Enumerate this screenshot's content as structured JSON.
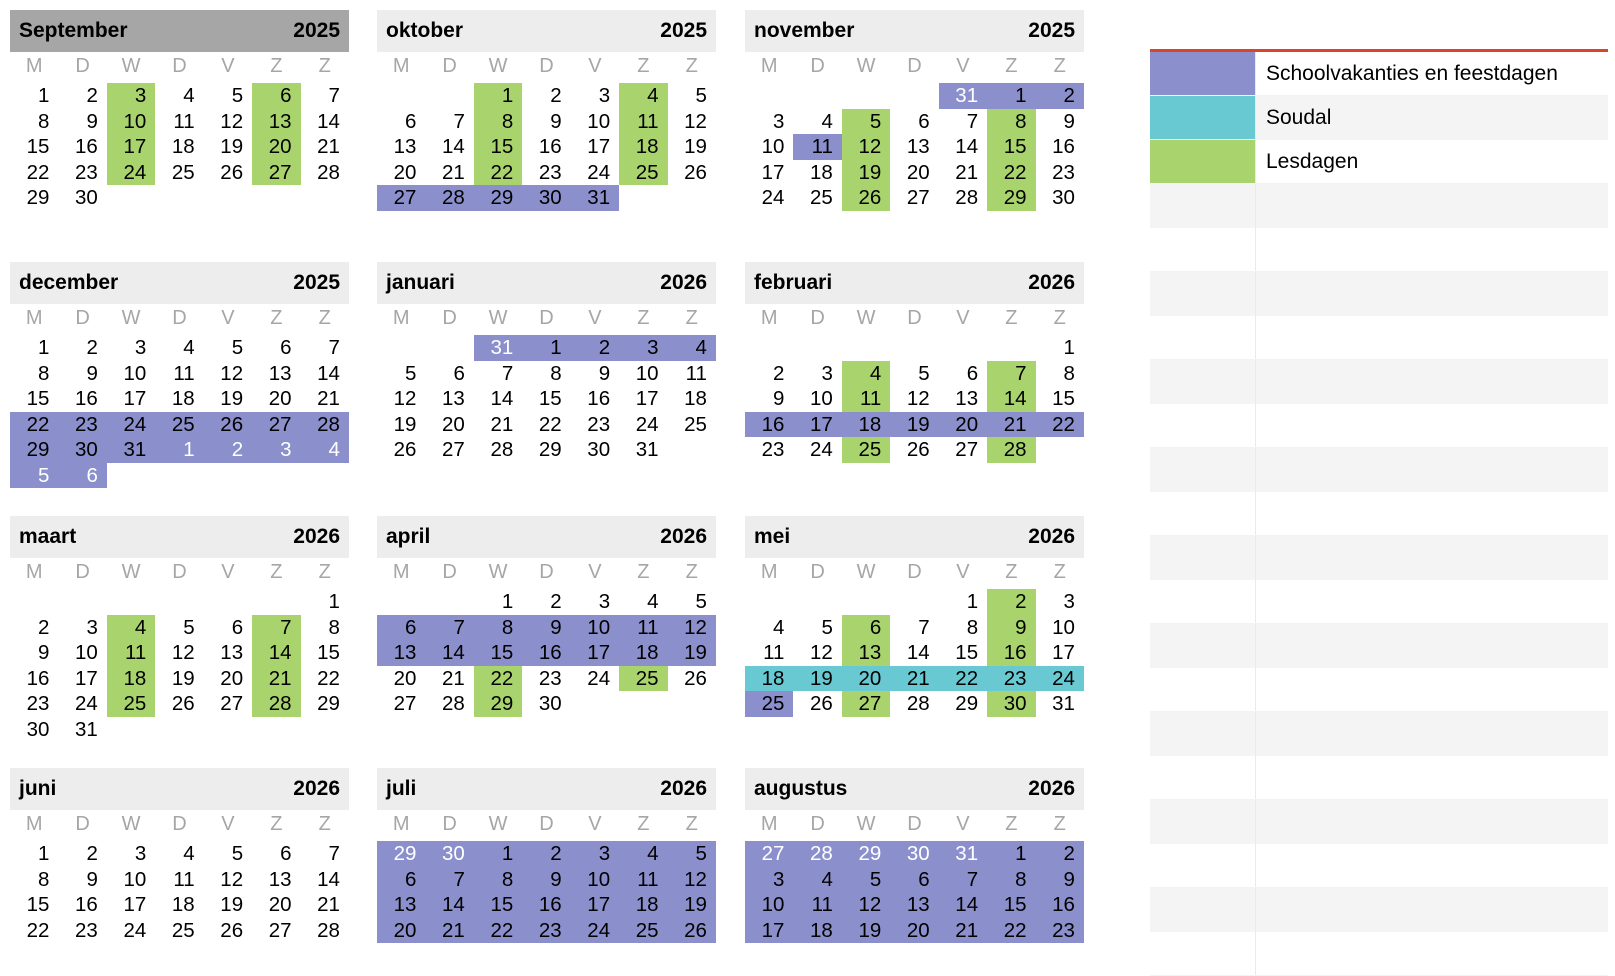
{
  "weekday_labels": [
    "M",
    "D",
    "W",
    "D",
    "V",
    "Z",
    "Z"
  ],
  "legend": {
    "items": [
      {
        "label": "Schoolvakanties en feestdagen",
        "color": "#8b90cc"
      },
      {
        "label": "Soudal",
        "color": "#69c9d3"
      },
      {
        "label": "Lesdagen",
        "color": "#a9d46d"
      }
    ],
    "empty_rows": 18
  },
  "colors": {
    "green": "#a9d46d",
    "purple": "#8b90cc",
    "teal": "#69c9d3",
    "header": "#ededed",
    "header_selected": "#a6a6a6"
  },
  "months": [
    {
      "name": "September",
      "year": "2025",
      "selected": true,
      "weeks": [
        [
          1,
          2,
          3,
          4,
          5,
          6,
          7
        ],
        [
          8,
          9,
          10,
          11,
          12,
          13,
          14
        ],
        [
          15,
          16,
          17,
          18,
          19,
          20,
          21
        ],
        [
          22,
          23,
          24,
          25,
          26,
          27,
          28
        ],
        [
          29,
          30,
          null,
          null,
          null,
          null,
          null
        ]
      ],
      "colors": [
        [
          "",
          "",
          "green",
          "",
          "",
          "green",
          ""
        ],
        [
          "",
          "",
          "green",
          "",
          "",
          "green",
          ""
        ],
        [
          "",
          "",
          "green",
          "",
          "",
          "green",
          ""
        ],
        [
          "",
          "",
          "green",
          "",
          "",
          "green",
          ""
        ],
        [
          "",
          "",
          "",
          "",
          "",
          "",
          ""
        ]
      ]
    },
    {
      "name": "oktober",
      "year": "2025",
      "weeks": [
        [
          null,
          null,
          1,
          2,
          3,
          4,
          5
        ],
        [
          6,
          7,
          8,
          9,
          10,
          11,
          12
        ],
        [
          13,
          14,
          15,
          16,
          17,
          18,
          19
        ],
        [
          20,
          21,
          22,
          23,
          24,
          25,
          26
        ],
        [
          27,
          28,
          29,
          30,
          31,
          null,
          null
        ]
      ],
      "colors": [
        [
          "",
          "",
          "green",
          "",
          "",
          "green",
          ""
        ],
        [
          "",
          "",
          "green",
          "",
          "",
          "green",
          ""
        ],
        [
          "",
          "",
          "green",
          "",
          "",
          "green",
          ""
        ],
        [
          "",
          "",
          "green",
          "",
          "",
          "green",
          ""
        ],
        [
          "purple",
          "purple",
          "purple",
          "purple",
          "purple",
          "",
          ""
        ]
      ]
    },
    {
      "name": "november",
      "year": "2025",
      "weeks": [
        [
          null,
          null,
          null,
          null,
          31,
          1,
          2
        ],
        [
          3,
          4,
          5,
          6,
          7,
          8,
          9
        ],
        [
          10,
          11,
          12,
          13,
          14,
          15,
          16
        ],
        [
          17,
          18,
          19,
          20,
          21,
          22,
          23
        ],
        [
          24,
          25,
          26,
          27,
          28,
          29,
          30
        ]
      ],
      "colors": [
        [
          "",
          "",
          "",
          "",
          "purple",
          "purple",
          "purple"
        ],
        [
          "",
          "",
          "green",
          "",
          "",
          "green",
          ""
        ],
        [
          "",
          "purple",
          "green",
          "",
          "",
          "green",
          ""
        ],
        [
          "",
          "",
          "green",
          "",
          "",
          "green",
          ""
        ],
        [
          "",
          "",
          "green",
          "",
          "",
          "green",
          ""
        ]
      ]
    },
    {
      "name": "december",
      "year": "2025",
      "weeks": [
        [
          1,
          2,
          3,
          4,
          5,
          6,
          7
        ],
        [
          8,
          9,
          10,
          11,
          12,
          13,
          14
        ],
        [
          15,
          16,
          17,
          18,
          19,
          20,
          21
        ],
        [
          22,
          23,
          24,
          25,
          26,
          27,
          28
        ],
        [
          29,
          30,
          31,
          1,
          2,
          3,
          4
        ],
        [
          5,
          6,
          null,
          null,
          null,
          null,
          null
        ]
      ],
      "colors": [
        [
          "",
          "",
          "",
          "",
          "",
          "",
          ""
        ],
        [
          "",
          "",
          "",
          "",
          "",
          "",
          ""
        ],
        [
          "",
          "",
          "",
          "",
          "",
          "",
          ""
        ],
        [
          "purple",
          "purple",
          "purple",
          "purple",
          "purple",
          "purple",
          "purple"
        ],
        [
          "purple",
          "purple",
          "purple",
          "purple",
          "purple",
          "purple",
          "purple"
        ],
        [
          "purple",
          "purple",
          "",
          "",
          "",
          "",
          ""
        ]
      ],
      "other_from": [
        4,
        3
      ]
    },
    {
      "name": "januari",
      "year": "2026",
      "weeks": [
        [
          null,
          null,
          31,
          1,
          2,
          3,
          4
        ],
        [
          5,
          6,
          7,
          8,
          9,
          10,
          11
        ],
        [
          12,
          13,
          14,
          15,
          16,
          17,
          18
        ],
        [
          19,
          20,
          21,
          22,
          23,
          24,
          25
        ],
        [
          26,
          27,
          28,
          29,
          30,
          31,
          null
        ]
      ],
      "colors": [
        [
          "",
          "",
          "purple",
          "purple",
          "purple",
          "purple",
          "purple"
        ],
        [
          "",
          "",
          "",
          "",
          "",
          "",
          ""
        ],
        [
          "",
          "",
          "",
          "",
          "",
          "",
          ""
        ],
        [
          "",
          "",
          "",
          "",
          "",
          "",
          ""
        ],
        [
          "",
          "",
          "",
          "",
          "",
          "",
          ""
        ]
      ]
    },
    {
      "name": "februari",
      "year": "2026",
      "weeks": [
        [
          null,
          null,
          null,
          null,
          null,
          null,
          1
        ],
        [
          2,
          3,
          4,
          5,
          6,
          7,
          8
        ],
        [
          9,
          10,
          11,
          12,
          13,
          14,
          15
        ],
        [
          16,
          17,
          18,
          19,
          20,
          21,
          22
        ],
        [
          23,
          24,
          25,
          26,
          27,
          28,
          null
        ]
      ],
      "colors": [
        [
          "",
          "",
          "",
          "",
          "",
          "",
          ""
        ],
        [
          "",
          "",
          "green",
          "",
          "",
          "green",
          ""
        ],
        [
          "",
          "",
          "green",
          "",
          "",
          "green",
          ""
        ],
        [
          "purple",
          "purple",
          "purple",
          "purple",
          "purple",
          "purple",
          "purple"
        ],
        [
          "",
          "",
          "green",
          "",
          "",
          "green",
          ""
        ]
      ]
    },
    {
      "name": "maart",
      "year": "2026",
      "weeks": [
        [
          null,
          null,
          null,
          null,
          null,
          null,
          1
        ],
        [
          2,
          3,
          4,
          5,
          6,
          7,
          8
        ],
        [
          9,
          10,
          11,
          12,
          13,
          14,
          15
        ],
        [
          16,
          17,
          18,
          19,
          20,
          21,
          22
        ],
        [
          23,
          24,
          25,
          26,
          27,
          28,
          29
        ],
        [
          30,
          31,
          null,
          null,
          null,
          null,
          null
        ]
      ],
      "colors": [
        [
          "",
          "",
          "",
          "",
          "",
          "",
          ""
        ],
        [
          "",
          "",
          "green",
          "",
          "",
          "green",
          ""
        ],
        [
          "",
          "",
          "green",
          "",
          "",
          "green",
          ""
        ],
        [
          "",
          "",
          "green",
          "",
          "",
          "green",
          ""
        ],
        [
          "",
          "",
          "green",
          "",
          "",
          "green",
          ""
        ],
        [
          "",
          "",
          "",
          "",
          "",
          "",
          ""
        ]
      ]
    },
    {
      "name": "april",
      "year": "2026",
      "weeks": [
        [
          null,
          null,
          1,
          2,
          3,
          4,
          5
        ],
        [
          6,
          7,
          8,
          9,
          10,
          11,
          12
        ],
        [
          13,
          14,
          15,
          16,
          17,
          18,
          19
        ],
        [
          20,
          21,
          22,
          23,
          24,
          25,
          26
        ],
        [
          27,
          28,
          29,
          30,
          null,
          null,
          null
        ]
      ],
      "colors": [
        [
          "",
          "",
          "",
          "",
          "",
          "",
          ""
        ],
        [
          "purple",
          "purple",
          "purple",
          "purple",
          "purple",
          "purple",
          "purple"
        ],
        [
          "purple",
          "purple",
          "purple",
          "purple",
          "purple",
          "purple",
          "purple"
        ],
        [
          "",
          "",
          "green",
          "",
          "",
          "green",
          ""
        ],
        [
          "",
          "",
          "green",
          "",
          "",
          "",
          ""
        ]
      ]
    },
    {
      "name": "mei",
      "year": "2026",
      "weeks": [
        [
          null,
          null,
          null,
          null,
          1,
          2,
          3
        ],
        [
          4,
          5,
          6,
          7,
          8,
          9,
          10
        ],
        [
          11,
          12,
          13,
          14,
          15,
          16,
          17
        ],
        [
          18,
          19,
          20,
          21,
          22,
          23,
          24
        ],
        [
          25,
          26,
          27,
          28,
          29,
          30,
          31
        ]
      ],
      "colors": [
        [
          "",
          "",
          "",
          "",
          "",
          "green",
          ""
        ],
        [
          "",
          "",
          "green",
          "",
          "",
          "green",
          ""
        ],
        [
          "",
          "",
          "green",
          "",
          "",
          "green",
          ""
        ],
        [
          "teal",
          "teal",
          "teal",
          "teal",
          "teal",
          "teal",
          "teal"
        ],
        [
          "purple",
          "",
          "green",
          "",
          "",
          "green",
          ""
        ]
      ]
    },
    {
      "name": "juni",
      "year": "2026",
      "weeks": [
        [
          1,
          2,
          3,
          4,
          5,
          6,
          7
        ],
        [
          8,
          9,
          10,
          11,
          12,
          13,
          14
        ],
        [
          15,
          16,
          17,
          18,
          19,
          20,
          21
        ],
        [
          22,
          23,
          24,
          25,
          26,
          27,
          28
        ]
      ],
      "colors": [
        [
          "",
          "",
          "",
          "",
          "",
          "",
          ""
        ],
        [
          "",
          "",
          "",
          "",
          "",
          "",
          ""
        ],
        [
          "",
          "",
          "",
          "",
          "",
          "",
          ""
        ],
        [
          "",
          "",
          "",
          "",
          "",
          "",
          ""
        ]
      ]
    },
    {
      "name": "juli",
      "year": "2026",
      "weeks": [
        [
          29,
          30,
          1,
          2,
          3,
          4,
          5
        ],
        [
          6,
          7,
          8,
          9,
          10,
          11,
          12
        ],
        [
          13,
          14,
          15,
          16,
          17,
          18,
          19
        ],
        [
          20,
          21,
          22,
          23,
          24,
          25,
          26
        ]
      ],
      "colors": [
        [
          "purple",
          "purple",
          "purple",
          "purple",
          "purple",
          "purple",
          "purple"
        ],
        [
          "purple",
          "purple",
          "purple",
          "purple",
          "purple",
          "purple",
          "purple"
        ],
        [
          "purple",
          "purple",
          "purple",
          "purple",
          "purple",
          "purple",
          "purple"
        ],
        [
          "purple",
          "purple",
          "purple",
          "purple",
          "purple",
          "purple",
          "purple"
        ]
      ],
      "other_prefix": 2
    },
    {
      "name": "augustus",
      "year": "2026",
      "weeks": [
        [
          27,
          28,
          29,
          30,
          31,
          1,
          2
        ],
        [
          3,
          4,
          5,
          6,
          7,
          8,
          9
        ],
        [
          10,
          11,
          12,
          13,
          14,
          15,
          16
        ],
        [
          17,
          18,
          19,
          20,
          21,
          22,
          23
        ]
      ],
      "colors": [
        [
          "purple",
          "purple",
          "purple",
          "purple",
          "purple",
          "purple",
          "purple"
        ],
        [
          "purple",
          "purple",
          "purple",
          "purple",
          "purple",
          "purple",
          "purple"
        ],
        [
          "purple",
          "purple",
          "purple",
          "purple",
          "purple",
          "purple",
          "purple"
        ],
        [
          "purple",
          "purple",
          "purple",
          "purple",
          "purple",
          "purple",
          "purple"
        ]
      ],
      "other_prefix": 5
    }
  ]
}
